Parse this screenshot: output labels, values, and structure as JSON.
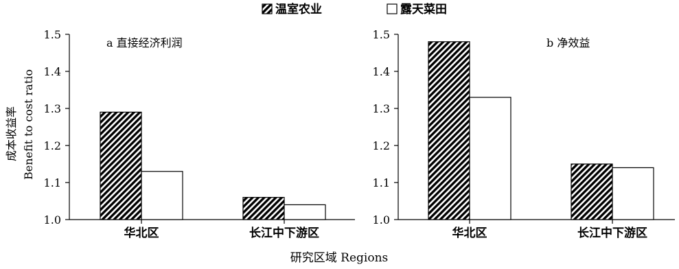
{
  "legend": {
    "items": [
      {
        "label": "温室农业",
        "pattern": "hatched"
      },
      {
        "label": "露天菜田",
        "pattern": "empty"
      }
    ]
  },
  "y_axis_label": {
    "zh": "成本收益率",
    "en": "Benefit to cost ratio"
  },
  "x_axis_label": "研究区域 Regions",
  "chart_data": [
    {
      "type": "bar",
      "title": "a  直接经济利润",
      "categories": [
        "华北区",
        "长江中下游区"
      ],
      "series": [
        {
          "name": "温室农业",
          "values": [
            1.29,
            1.06
          ]
        },
        {
          "name": "露天菜田",
          "values": [
            1.13,
            1.04
          ]
        }
      ],
      "ylim": [
        1.0,
        1.5
      ],
      "yticks": [
        "1.0",
        "1.1",
        "1.2",
        "1.3",
        "1.4",
        "1.5"
      ],
      "grid": false
    },
    {
      "type": "bar",
      "title": "b  净效益",
      "categories": [
        "华北区",
        "长江中下游区"
      ],
      "series": [
        {
          "name": "温室农业",
          "values": [
            1.48,
            1.15
          ]
        },
        {
          "name": "露天菜田",
          "values": [
            1.33,
            1.14
          ]
        }
      ],
      "ylim": [
        1.0,
        1.5
      ],
      "yticks": [
        "1.0",
        "1.1",
        "1.2",
        "1.3",
        "1.4",
        "1.5"
      ],
      "grid": false
    }
  ]
}
